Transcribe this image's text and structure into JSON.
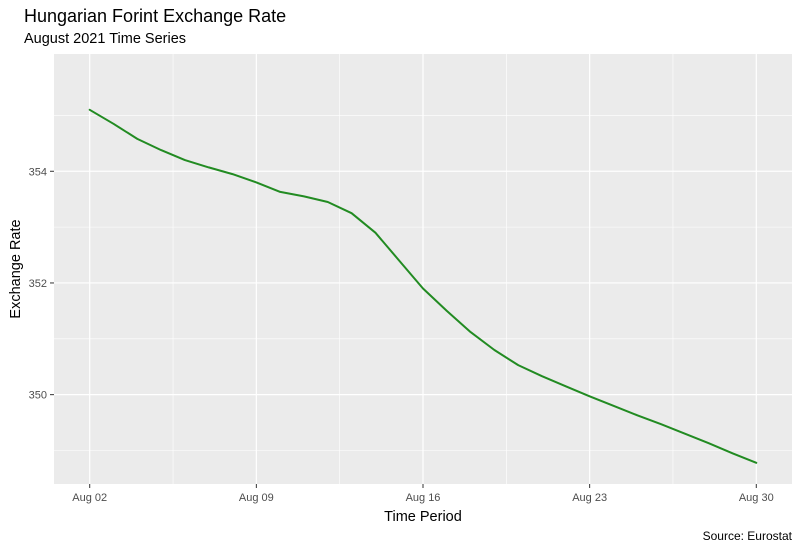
{
  "chart_data": {
    "type": "line",
    "title": "Hungarian Forint Exchange Rate",
    "subtitle": "August 2021 Time Series",
    "xlabel": "Time Period",
    "ylabel": "Exchange Rate",
    "caption": "Source: Eurostat",
    "x_ticks": [
      "Aug 02",
      "Aug 09",
      "Aug 16",
      "Aug 23",
      "Aug 30"
    ],
    "y_ticks": [
      350,
      352,
      354
    ],
    "xlim": [
      "2021-07-31T12:00",
      "2021-08-31T12:00"
    ],
    "ylim": [
      348.4,
      356.1
    ],
    "grid": true,
    "series": [
      {
        "color": "#228B22",
        "points": [
          {
            "x": "2021-08-02",
            "y": 355.1
          },
          {
            "x": "2021-08-03",
            "y": 354.85
          },
          {
            "x": "2021-08-04",
            "y": 354.58
          },
          {
            "x": "2021-08-05",
            "y": 354.38
          },
          {
            "x": "2021-08-06",
            "y": 354.2
          },
          {
            "x": "2021-08-07",
            "y": 354.07
          },
          {
            "x": "2021-08-08",
            "y": 353.95
          },
          {
            "x": "2021-08-09",
            "y": 353.8
          },
          {
            "x": "2021-08-10",
            "y": 353.63
          },
          {
            "x": "2021-08-11",
            "y": 353.55
          },
          {
            "x": "2021-08-12",
            "y": 353.45
          },
          {
            "x": "2021-08-13",
            "y": 353.25
          },
          {
            "x": "2021-08-14",
            "y": 352.9
          },
          {
            "x": "2021-08-15",
            "y": 352.4
          },
          {
            "x": "2021-08-16",
            "y": 351.9
          },
          {
            "x": "2021-08-17",
            "y": 351.5
          },
          {
            "x": "2021-08-18",
            "y": 351.12
          },
          {
            "x": "2021-08-19",
            "y": 350.8
          },
          {
            "x": "2021-08-20",
            "y": 350.53
          },
          {
            "x": "2021-08-21",
            "y": 350.33
          },
          {
            "x": "2021-08-22",
            "y": 350.15
          },
          {
            "x": "2021-08-23",
            "y": 349.97
          },
          {
            "x": "2021-08-24",
            "y": 349.8
          },
          {
            "x": "2021-08-25",
            "y": 349.63
          },
          {
            "x": "2021-08-26",
            "y": 349.47
          },
          {
            "x": "2021-08-27",
            "y": 349.3
          },
          {
            "x": "2021-08-28",
            "y": 349.13
          },
          {
            "x": "2021-08-29",
            "y": 348.95
          },
          {
            "x": "2021-08-30",
            "y": 348.78
          }
        ]
      }
    ]
  }
}
